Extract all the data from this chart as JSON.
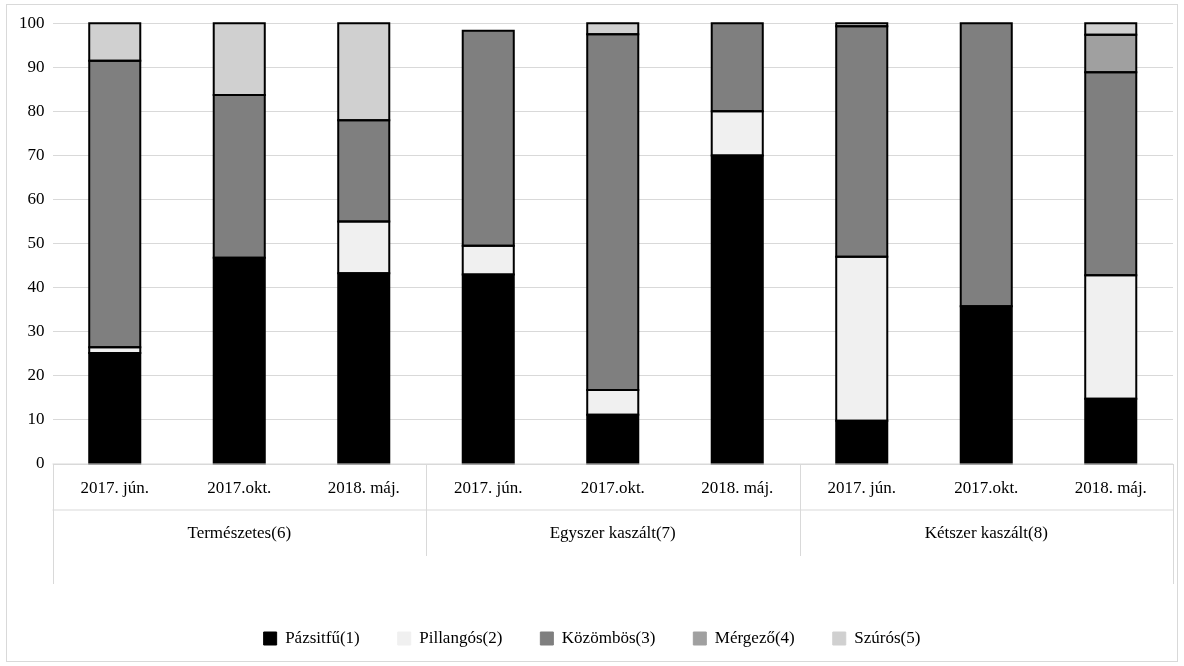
{
  "chart_data": {
    "type": "bar",
    "stacked": true,
    "categories": [
      "2017. jún.",
      "2017.okt.",
      "2018. máj.",
      "2017. jún.",
      "2017.okt.",
      "2018. máj.",
      "2017. jún.",
      "2017.okt.",
      "2018. máj."
    ],
    "annotations": [
      "Természetes(6)",
      "Egyszer kaszált(7)",
      "Kétszer kaszált(8)"
    ],
    "series": [
      {
        "name": "Pázsitfű(1)",
        "color": "#000000",
        "values": [
          25.2,
          46.8,
          43.3,
          43,
          11.2,
          70,
          9.8,
          35.8,
          14.8
        ]
      },
      {
        "name": "Pillangós(2)",
        "color": "#f0f0f0",
        "values": [
          1.3,
          null,
          11.7,
          6.5,
          5.6,
          10,
          37.2,
          null,
          28
        ]
      },
      {
        "name": "Közömbös(3)",
        "color": "#7f7f7f",
        "values": [
          65,
          36.9,
          23,
          48.8,
          80.7,
          20,
          52.3,
          64.2,
          46.1
        ]
      },
      {
        "name": "Mérgező(4)",
        "color": "#a0a0a0",
        "values": [
          null,
          null,
          null,
          null,
          null,
          null,
          null,
          null,
          8.5
        ]
      },
      {
        "name": "Szúrós(5)",
        "color": "#d0d0d0",
        "values": [
          8.5,
          16.3,
          22,
          null,
          2.5,
          null,
          0.7,
          null,
          2.6
        ]
      }
    ],
    "ylim": [
      0,
      100
    ],
    "yticks": [
      0,
      10,
      20,
      30,
      40,
      50,
      60,
      70,
      80,
      90,
      100
    ],
    "grid": "y",
    "legend": "bottom"
  }
}
